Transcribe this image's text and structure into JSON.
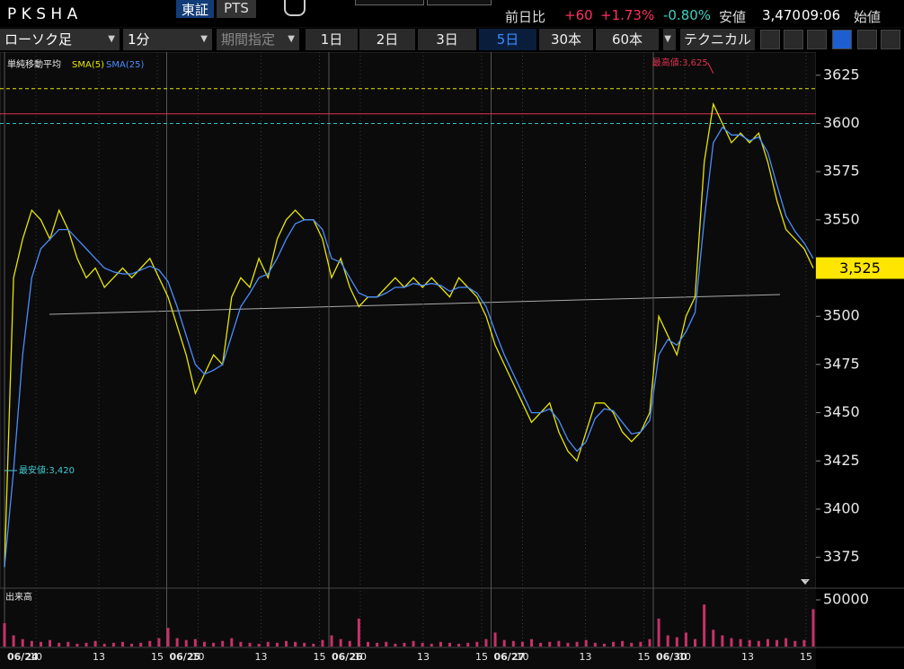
{
  "header": {
    "symbol": "P K S H A",
    "exchanges": [
      "東証",
      "PTS"
    ],
    "quote": {
      "change_label": "前日比",
      "change": "+60",
      "change_pct": "+1.73%",
      "other_pct": "-0.80%",
      "low_label": "安値",
      "low": "3,470",
      "time": "09:06",
      "open_label": "始値"
    }
  },
  "toolbar": {
    "chart_type": "ローソク足",
    "interval": "1分",
    "period": "期間指定",
    "ranges": [
      "1日",
      "2日",
      "3日",
      "5日",
      "30本",
      "60本"
    ],
    "selected_index": 3,
    "technical": "テクニカル"
  },
  "chart_data": {
    "type": "line",
    "indicator_title": "単純移動平均",
    "series": [
      {
        "name": "SMA(5)",
        "color": "#e6e600",
        "values": [
          3370,
          3520,
          3540,
          3555,
          3550,
          3540,
          3555,
          3545,
          3530,
          3520,
          3525,
          3515,
          3520,
          3525,
          3520,
          3525,
          3530,
          3520,
          3510,
          3495,
          3480,
          3460,
          3470,
          3480,
          3475,
          3510,
          3520,
          3515,
          3530,
          3520,
          3540,
          3550,
          3555,
          3550,
          3550,
          3540,
          3520,
          3530,
          3515,
          3505,
          3510,
          3510,
          3515,
          3520,
          3515,
          3520,
          3515,
          3520,
          3515,
          3510,
          3520,
          3515,
          3510,
          3500,
          3485,
          3475,
          3465,
          3455,
          3445,
          3450,
          3455,
          3440,
          3430,
          3425,
          3440,
          3455,
          3455,
          3450,
          3440,
          3435,
          3440,
          3450,
          3500,
          3490,
          3480,
          3500,
          3510,
          3580,
          3610,
          3600,
          3590,
          3595,
          3590,
          3595,
          3580,
          3560,
          3545,
          3540,
          3535,
          3525
        ]
      },
      {
        "name": "SMA(25)",
        "color": "#4a8cff",
        "values": [
          3370,
          3420,
          3480,
          3520,
          3535,
          3540,
          3545,
          3545,
          3540,
          3535,
          3530,
          3525,
          3523,
          3522,
          3522,
          3524,
          3526,
          3524,
          3518,
          3505,
          3490,
          3475,
          3470,
          3472,
          3475,
          3490,
          3505,
          3512,
          3520,
          3522,
          3530,
          3540,
          3548,
          3550,
          3550,
          3545,
          3530,
          3528,
          3520,
          3512,
          3510,
          3510,
          3512,
          3515,
          3515,
          3517,
          3516,
          3517,
          3516,
          3513,
          3515,
          3515,
          3512,
          3505,
          3492,
          3480,
          3470,
          3460,
          3450,
          3450,
          3452,
          3446,
          3436,
          3430,
          3435,
          3447,
          3452,
          3451,
          3445,
          3439,
          3440,
          3446,
          3480,
          3488,
          3485,
          3492,
          3502,
          3550,
          3590,
          3598,
          3594,
          3594,
          3591,
          3593,
          3585,
          3568,
          3552,
          3544,
          3538,
          3530
        ]
      }
    ],
    "ylim": [
      3359,
      3637
    ],
    "yticks": [
      3375,
      3400,
      3425,
      3450,
      3475,
      3500,
      3525,
      3550,
      3575,
      3600,
      3625
    ],
    "reference_lines": [
      {
        "value": 3618,
        "color": "#e6e600",
        "style": "dashed"
      },
      {
        "value": 3605,
        "color": "#e03050",
        "style": "solid"
      },
      {
        "value": 3600,
        "color": "#30c0c0",
        "style": "dashed"
      }
    ],
    "annotations": [
      {
        "text": "最高値:3,625",
        "value": 3625,
        "index": 78,
        "color": "#e03050"
      },
      {
        "text": "最安値:3,420",
        "value": 3420,
        "index": 0,
        "color": "#40c8d0"
      }
    ],
    "last_price": {
      "value": 3525,
      "label": "3,525"
    },
    "x_labels": [
      "06/24",
      "10",
      "13",
      "15",
      "06/25",
      "10",
      "13",
      "15",
      "06/26",
      "10",
      "13",
      "15",
      "06/27",
      "10",
      "13",
      "15",
      "06/30",
      "10",
      "13",
      "15"
    ],
    "volume": {
      "title": "出来高",
      "color": "#c8306a",
      "ylim": [
        0,
        59600
      ],
      "yticks": [
        50000
      ],
      "values": [
        25000,
        12000,
        8000,
        6000,
        5000,
        7000,
        4000,
        5000,
        3000,
        4000,
        6000,
        3000,
        4000,
        5000,
        3000,
        4000,
        6000,
        9000,
        20000,
        9000,
        7000,
        8000,
        5000,
        4000,
        6000,
        9000,
        5000,
        4000,
        3000,
        5000,
        4000,
        6000,
        5000,
        4000,
        3000,
        7000,
        12000,
        8000,
        6000,
        30000,
        5000,
        4000,
        5000,
        3000,
        4000,
        6000,
        4000,
        3000,
        5000,
        4000,
        3000,
        4000,
        5000,
        8000,
        15000,
        7000,
        6000,
        5000,
        8000,
        4000,
        5000,
        6000,
        4000,
        5000,
        7000,
        4000,
        3000,
        5000,
        6000,
        4000,
        5000,
        8000,
        30000,
        12000,
        10000,
        15000,
        8000,
        45000,
        18000,
        12000,
        9000,
        8000,
        7000,
        6000,
        8000,
        7000,
        9000,
        6000,
        7000,
        40000
      ]
    }
  }
}
